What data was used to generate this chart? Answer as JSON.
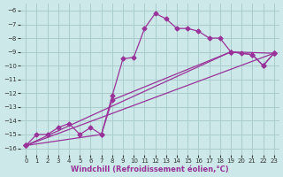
{
  "xlabel": "Windchill (Refroidissement éolien,°C)",
  "bg_color": "#cce8e8",
  "grid_color": "#aacccc",
  "line_color": "#993399",
  "xlim": [
    -0.5,
    23.5
  ],
  "ylim": [
    -16.5,
    -5.5
  ],
  "xticks": [
    0,
    1,
    2,
    3,
    4,
    5,
    6,
    7,
    8,
    9,
    10,
    11,
    12,
    13,
    14,
    15,
    16,
    17,
    18,
    19,
    20,
    21,
    22,
    23
  ],
  "yticks": [
    -16,
    -15,
    -14,
    -13,
    -12,
    -11,
    -10,
    -9,
    -8,
    -7,
    -6
  ],
  "lines": [
    {
      "x": [
        0,
        1,
        2,
        3,
        4,
        5,
        6,
        7,
        8,
        9,
        10,
        11,
        12,
        13,
        14,
        15,
        16,
        17,
        18,
        19,
        20,
        21,
        22,
        23
      ],
      "y": [
        -15.8,
        -15.0,
        -15.0,
        -14.5,
        -14.2,
        -15.0,
        -14.5,
        -15.0,
        -12.2,
        -9.5,
        -9.4,
        -7.3,
        -6.2,
        -6.6,
        -7.3,
        -7.3,
        -7.5,
        -8.0,
        -8.0,
        -9.0,
        -9.1,
        -9.2,
        -10.0,
        -9.1
      ]
    },
    {
      "x": [
        0,
        23
      ],
      "y": [
        -15.8,
        -9.1
      ]
    },
    {
      "x": [
        0,
        19,
        23
      ],
      "y": [
        -15.8,
        -9.0,
        -9.1
      ]
    },
    {
      "x": [
        0,
        7,
        8,
        19,
        21,
        22,
        23
      ],
      "y": [
        -15.8,
        -15.0,
        -12.5,
        -9.0,
        -9.2,
        -10.0,
        -9.1
      ]
    }
  ],
  "marker": "D",
  "markersize": 2.5,
  "linewidth": 0.9,
  "xlabel_fontsize": 6,
  "tick_fontsize": 5,
  "xlabel_pad": 1
}
